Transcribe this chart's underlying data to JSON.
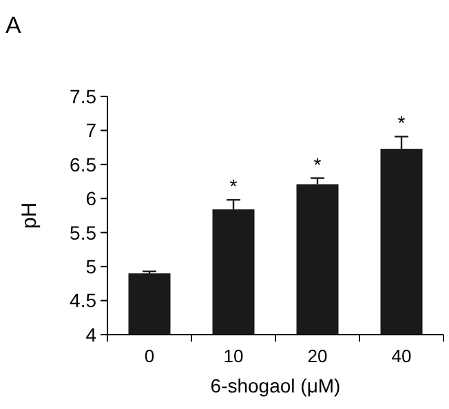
{
  "chart_data": {
    "type": "bar",
    "xlabel": "6-shogaol (μM)",
    "ylabel": "pH",
    "categories": [
      "0",
      "10",
      "20",
      "40"
    ],
    "values": [
      4.9,
      5.84,
      6.21,
      6.73
    ],
    "errors": [
      [
        4.9,
        4.93
      ],
      [
        5.84,
        5.98
      ],
      [
        6.21,
        6.3
      ],
      [
        6.73,
        6.91
      ]
    ],
    "color": "#1a1a1a",
    "ylim": [
      4,
      7.5
    ],
    "yticks": [
      4,
      4.5,
      5,
      5.5,
      6,
      6.5,
      7,
      7.5
    ],
    "annotations": [
      "A",
      {
        "text": "*",
        "x": "10",
        "y": 5.98
      },
      {
        "text": "*",
        "x": "20",
        "y": 6.3
      },
      {
        "text": "*",
        "x": "40",
        "y": 6.91
      }
    ]
  }
}
